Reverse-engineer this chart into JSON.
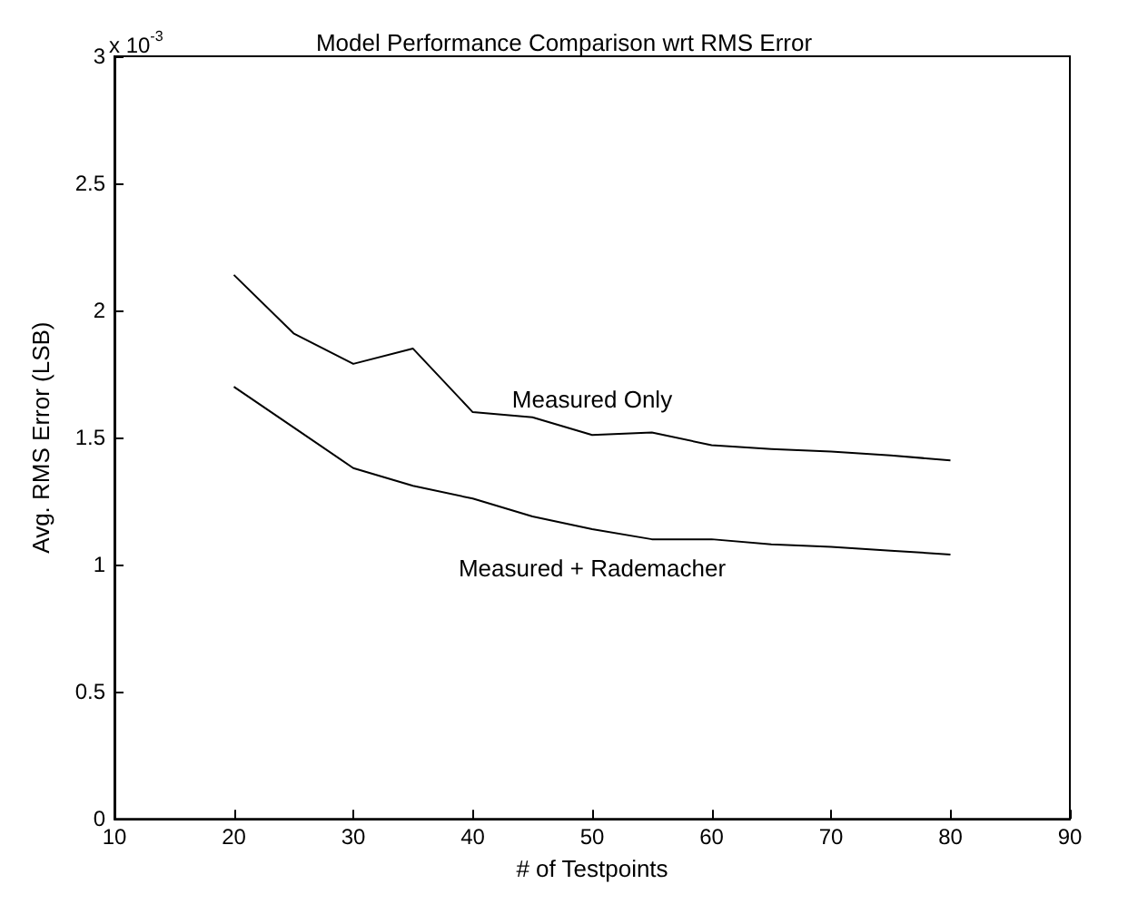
{
  "chart_data": {
    "type": "line",
    "title": "Model Performance Comparison wrt RMS Error",
    "xlabel": "# of Testpoints",
    "ylabel": "Avg. RMS Error (LSB)",
    "annotations": [
      "x 10$^{-3}$"
    ],
    "x": [
      20,
      25,
      30,
      35,
      40,
      45,
      50,
      55,
      60,
      65,
      70,
      75,
      80
    ],
    "series": [
      {
        "name": "Measured Only",
        "color": "#000000",
        "values": [
          2.14,
          1.91,
          1.79,
          1.85,
          1.6,
          1.58,
          1.51,
          1.52,
          1.47,
          1.455,
          1.445,
          1.43,
          1.41
        ]
      },
      {
        "name": "Measured + Rademacher",
        "color": "#000000",
        "values": [
          1.7,
          1.54,
          1.38,
          1.31,
          1.26,
          1.19,
          1.14,
          1.1,
          1.1,
          1.08,
          1.07,
          1.055,
          1.04
        ]
      }
    ],
    "xlim": [
      10,
      90
    ],
    "xticks": [
      10,
      20,
      30,
      40,
      50,
      60,
      70,
      80,
      90
    ],
    "ylim": [
      0,
      3
    ],
    "yticks": [
      0,
      0.5,
      1,
      1.5,
      2,
      2.5,
      3
    ],
    "grid": false,
    "legend": false,
    "marker": "none",
    "line_style": "solid"
  }
}
